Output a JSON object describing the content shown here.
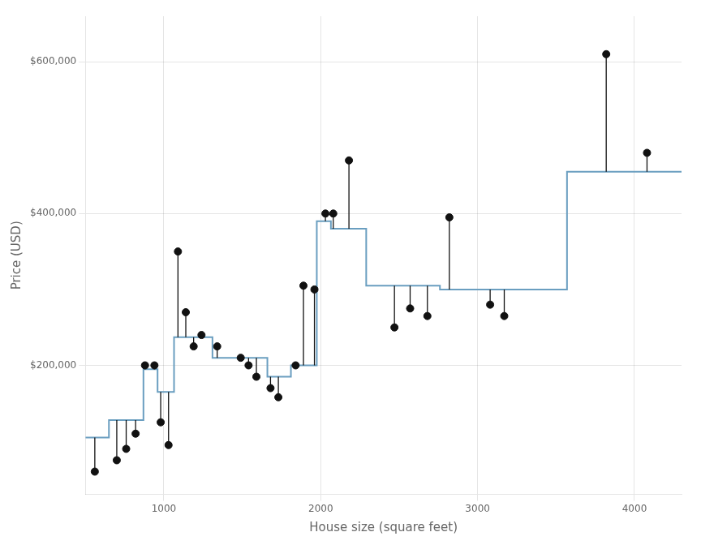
{
  "chart_data": {
    "type": "scatter",
    "xlabel": "House size (square feet)",
    "ylabel": "Price (USD)",
    "xlim": [
      500,
      4300
    ],
    "ylim": [
      30000,
      660000
    ],
    "xticks": [
      1000,
      2000,
      3000,
      4000
    ],
    "yticks": [
      {
        "value": 200000,
        "label": "$200,000"
      },
      {
        "value": 400000,
        "label": "$400,000"
      },
      {
        "value": 600000,
        "label": "$600,000"
      }
    ],
    "grid": true,
    "series": [
      {
        "type": "line",
        "color": "#6a9ec0",
        "x_start": [
          500,
          650,
          870,
          960,
          1065,
          1310,
          1660,
          1810,
          1975,
          2065,
          2290,
          2760,
          3130,
          3570
        ],
        "x_end": [
          650,
          870,
          960,
          1065,
          1310,
          1660,
          1810,
          1975,
          2065,
          2290,
          2760,
          3130,
          3570,
          4300
        ],
        "values": [
          105000,
          128000,
          195000,
          165000,
          237000,
          210000,
          185000,
          200000,
          390000,
          380000,
          305000,
          300000,
          300000,
          455000
        ]
      },
      {
        "type": "scatter",
        "color": "#111111",
        "x": [
          560,
          700,
          760,
          820,
          880,
          940,
          980,
          1030,
          1090,
          1140,
          1190,
          1240,
          1340,
          1490,
          1540,
          1590,
          1680,
          1730,
          1840,
          1890,
          1960,
          2030,
          2080,
          2180,
          2470,
          2570,
          2680,
          2820,
          3080,
          3170,
          3820,
          4080
        ],
        "values": [
          60000,
          75000,
          90000,
          110000,
          200000,
          200000,
          125000,
          95000,
          350000,
          270000,
          225000,
          240000,
          225000,
          210000,
          200000,
          185000,
          170000,
          158000,
          200000,
          305000,
          300000,
          400000,
          400000,
          470000,
          250000,
          275000,
          265000,
          395000,
          280000,
          265000,
          610000,
          480000
        ],
        "predicted": [
          105000,
          128000,
          128000,
          128000,
          195000,
          195000,
          165000,
          165000,
          237000,
          237000,
          237000,
          237000,
          210000,
          210000,
          210000,
          210000,
          185000,
          185000,
          200000,
          200000,
          200000,
          390000,
          380000,
          380000,
          305000,
          305000,
          305000,
          300000,
          300000,
          300000,
          455000,
          455000
        ]
      }
    ]
  }
}
